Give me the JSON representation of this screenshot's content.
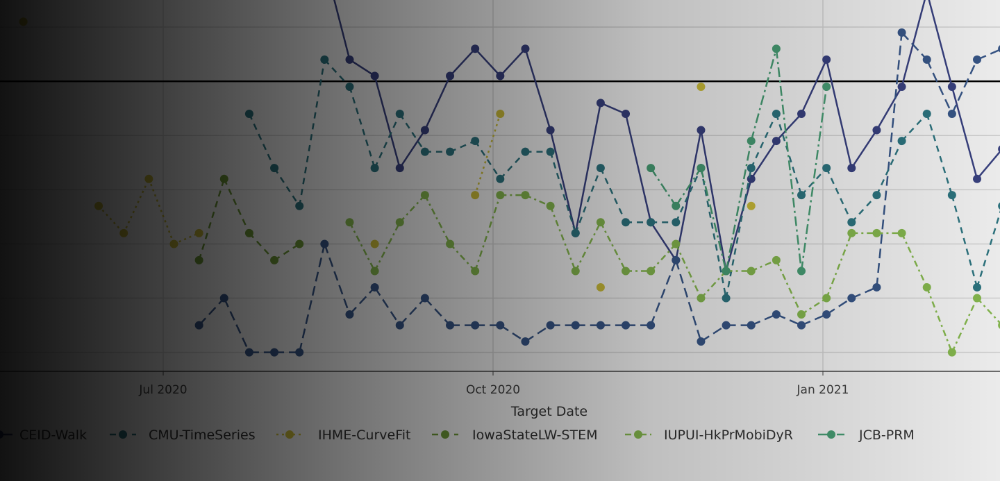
{
  "chart_data": {
    "type": "line",
    "title": "",
    "xlabel": "Target Date",
    "ylabel": "",
    "x_ticks": [
      {
        "date": "2020-07-01",
        "label": "Jul 2020"
      },
      {
        "date": "2020-10-01",
        "label": "Oct 2020"
      },
      {
        "date": "2021-01-01",
        "label": "Jan 2021"
      }
    ],
    "xlim": [
      "2020-05-17",
      "2021-02-20"
    ],
    "ylim": [
      -0.7,
      13.0
    ],
    "y_gridlines": [
      0,
      2,
      4,
      6,
      8,
      10,
      12
    ],
    "reference_line": 10,
    "grid": true,
    "legend_position": "bottom",
    "series": [
      {
        "name": "CEID-Walk",
        "color": "#3b4486",
        "dash": "solid",
        "points": [
          [
            "2020-08-15",
            14.4
          ],
          [
            "2020-08-22",
            10.8
          ],
          [
            "2020-08-29",
            10.2
          ],
          [
            "2020-09-05",
            6.8
          ],
          [
            "2020-09-12",
            8.2
          ],
          [
            "2020-09-19",
            10.2
          ],
          [
            "2020-09-26",
            11.2
          ],
          [
            "2020-10-03",
            10.2
          ],
          [
            "2020-10-10",
            11.2
          ],
          [
            "2020-10-17",
            8.2
          ],
          [
            "2020-10-24",
            4.4
          ],
          [
            "2020-10-31",
            9.2
          ],
          [
            "2020-11-07",
            8.8
          ],
          [
            "2020-11-14",
            4.8
          ],
          [
            "2020-11-21",
            3.4
          ],
          [
            "2020-11-28",
            8.2
          ],
          [
            "2020-12-05",
            3.0
          ],
          [
            "2020-12-12",
            6.4
          ],
          [
            "2020-12-19",
            7.8
          ],
          [
            "2020-12-26",
            8.8
          ],
          [
            "2021-01-02",
            10.8
          ],
          [
            "2021-01-09",
            6.8
          ],
          [
            "2021-01-16",
            8.2
          ],
          [
            "2021-01-23",
            9.8
          ],
          [
            "2021-01-30",
            13.3
          ],
          [
            "2021-02-06",
            9.8
          ],
          [
            "2021-02-13",
            6.4
          ],
          [
            "2021-02-20",
            7.5
          ]
        ]
      },
      {
        "color": "#3a5a8e",
        "dash": "longdash",
        "points": [
          [
            "2020-07-11",
            1.0
          ],
          [
            "2020-07-18",
            2.0
          ],
          [
            "2020-07-25",
            0
          ],
          [
            "2020-08-01",
            0
          ],
          [
            "2020-08-08",
            0
          ],
          [
            "2020-08-15",
            4.0
          ],
          [
            "2020-08-22",
            1.4
          ],
          [
            "2020-08-29",
            2.4
          ],
          [
            "2020-09-05",
            1.0
          ],
          [
            "2020-09-12",
            2.0
          ],
          [
            "2020-09-19",
            1.0
          ],
          [
            "2020-09-26",
            1.0
          ],
          [
            "2020-10-03",
            1.0
          ],
          [
            "2020-10-10",
            0.4
          ],
          [
            "2020-10-17",
            1.0
          ],
          [
            "2020-10-24",
            1.0
          ],
          [
            "2020-10-31",
            1.0
          ],
          [
            "2020-11-07",
            1.0
          ],
          [
            "2020-11-14",
            1.0
          ],
          [
            "2020-11-21",
            3.4
          ],
          [
            "2020-11-28",
            0.4
          ],
          [
            "2020-12-05",
            1.0
          ],
          [
            "2020-12-12",
            1.0
          ],
          [
            "2020-12-19",
            1.4
          ],
          [
            "2020-12-26",
            1.0
          ],
          [
            "2021-01-02",
            1.4
          ],
          [
            "2021-01-09",
            2.0
          ],
          [
            "2021-01-16",
            2.4
          ],
          [
            "2021-01-23",
            11.8
          ],
          [
            "2021-01-30",
            10.8
          ],
          [
            "2021-02-06",
            8.8
          ],
          [
            "2021-02-13",
            10.8
          ],
          [
            "2021-02-20",
            11.2
          ]
        ]
      },
      {
        "name": "CMU-TimeSeries",
        "color": "#2f7a86",
        "dash": "dash",
        "points": [
          [
            "2020-07-25",
            8.8
          ],
          [
            "2020-08-01",
            6.8
          ],
          [
            "2020-08-08",
            5.4
          ],
          [
            "2020-08-15",
            10.8
          ],
          [
            "2020-08-22",
            9.8
          ],
          [
            "2020-08-29",
            6.8
          ],
          [
            "2020-09-05",
            8.8
          ],
          [
            "2020-09-12",
            7.4
          ],
          [
            "2020-09-19",
            7.4
          ],
          [
            "2020-09-26",
            7.8
          ],
          [
            "2020-10-03",
            6.4
          ],
          [
            "2020-10-10",
            7.4
          ],
          [
            "2020-10-17",
            7.4
          ],
          [
            "2020-10-24",
            4.4
          ],
          [
            "2020-10-31",
            6.8
          ],
          [
            "2020-11-07",
            4.8
          ],
          [
            "2020-11-14",
            4.8
          ],
          [
            "2020-11-21",
            4.8
          ],
          [
            "2020-11-28",
            6.8
          ],
          [
            "2020-12-05",
            2.0
          ],
          [
            "2020-12-12",
            6.8
          ],
          [
            "2020-12-19",
            8.8
          ],
          [
            "2020-12-26",
            5.8
          ],
          [
            "2021-01-02",
            6.8
          ],
          [
            "2021-01-09",
            4.8
          ],
          [
            "2021-01-16",
            5.8
          ],
          [
            "2021-01-23",
            7.8
          ],
          [
            "2021-01-30",
            8.8
          ],
          [
            "2021-02-06",
            5.8
          ],
          [
            "2021-02-13",
            2.4
          ],
          [
            "2021-02-20",
            5.4
          ]
        ]
      },
      {
        "name": "IHME-CurveFit",
        "color": "#d6c63c",
        "dash": "dot",
        "points": [
          [
            "2020-05-23",
            12.2
          ],
          [
            "2020-06-13",
            5.4
          ],
          [
            "2020-06-20",
            4.4
          ],
          [
            "2020-06-27",
            6.4
          ],
          [
            "2020-07-04",
            4.0
          ],
          [
            "2020-07-11",
            4.4
          ],
          [
            "2020-08-29",
            4.0
          ],
          [
            "2020-09-26",
            5.8
          ],
          [
            "2020-10-03",
            8.8
          ],
          [
            "2020-10-31",
            2.4
          ],
          [
            "2020-11-28",
            9.8
          ],
          [
            "2020-12-12",
            5.4
          ]
        ]
      },
      {
        "name": "IowaStateLW-STEM",
        "color": "#74a13a",
        "dash": "dash",
        "points": [
          [
            "2020-07-11",
            3.4
          ],
          [
            "2020-07-18",
            6.4
          ],
          [
            "2020-07-25",
            4.4
          ],
          [
            "2020-08-01",
            3.4
          ],
          [
            "2020-08-08",
            4.0
          ]
        ]
      },
      {
        "name": "IUPUI-HkPrMobiDyR",
        "color": "#8cc152",
        "dash": "dashdot",
        "points": [
          [
            "2020-08-22",
            4.8
          ],
          [
            "2020-08-29",
            3.0
          ],
          [
            "2020-09-05",
            4.8
          ],
          [
            "2020-09-12",
            5.8
          ],
          [
            "2020-09-19",
            4.0
          ],
          [
            "2020-09-26",
            3.0
          ],
          [
            "2020-10-03",
            5.8
          ],
          [
            "2020-10-10",
            5.8
          ],
          [
            "2020-10-17",
            5.4
          ],
          [
            "2020-10-24",
            3.0
          ],
          [
            "2020-10-31",
            4.8
          ],
          [
            "2020-11-07",
            3.0
          ],
          [
            "2020-11-14",
            3.0
          ],
          [
            "2020-11-21",
            4.0
          ],
          [
            "2020-11-28",
            2.0
          ],
          [
            "2020-12-05",
            3.0
          ],
          [
            "2020-12-12",
            3.0
          ],
          [
            "2020-12-19",
            3.4
          ],
          [
            "2020-12-26",
            1.4
          ],
          [
            "2021-01-02",
            2.0
          ],
          [
            "2021-01-09",
            4.4
          ],
          [
            "2021-01-16",
            4.4
          ],
          [
            "2021-01-23",
            4.4
          ],
          [
            "2021-01-30",
            2.4
          ],
          [
            "2021-02-06",
            0
          ],
          [
            "2021-02-13",
            2.0
          ],
          [
            "2021-02-20",
            1.0
          ]
        ]
      },
      {
        "name": "JCB-PRM",
        "color": "#4ba57a",
        "dash": "longdashdot",
        "points": [
          [
            "2020-11-14",
            6.8
          ],
          [
            "2020-11-21",
            5.4
          ],
          [
            "2020-11-28",
            6.8
          ],
          [
            "2020-12-05",
            3.0
          ],
          [
            "2020-12-12",
            7.8
          ],
          [
            "2020-12-19",
            11.2
          ],
          [
            "2020-12-26",
            3.0
          ],
          [
            "2021-01-02",
            9.8
          ]
        ]
      }
    ]
  }
}
